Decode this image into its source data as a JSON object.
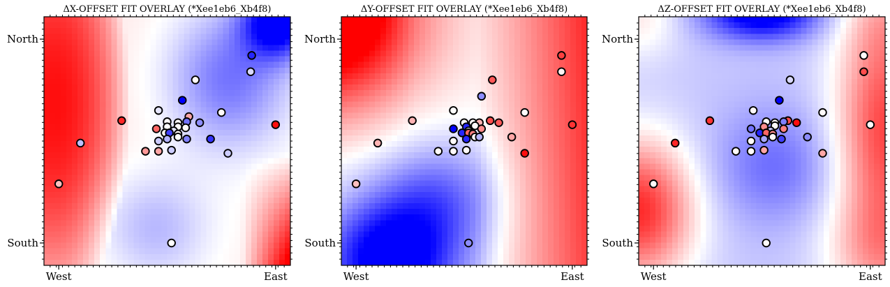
{
  "chart_data": [
    {
      "type": "scatter",
      "subtype": "heatmap-with-points",
      "title": "ΔX-OFFSET FIT OVERLAY (*Xee1eb6_Xb4f8)",
      "xlabel": "",
      "ylabel": "",
      "x_tick_labels": [
        "West",
        "East"
      ],
      "y_tick_labels": [
        "North",
        "South"
      ],
      "colormap": "bwr",
      "clim": [
        -1,
        1
      ],
      "field": "dx",
      "points": [
        {
          "x": 0.89,
          "y": 0.92,
          "v": -0.85
        },
        {
          "x": 0.885,
          "y": 0.84,
          "v": -0.15
        },
        {
          "x": 0.63,
          "y": 0.8,
          "v": 0.02
        },
        {
          "x": 0.57,
          "y": 0.7,
          "v": -1.0
        },
        {
          "x": 0.46,
          "y": 0.65,
          "v": -0.1
        },
        {
          "x": 0.6,
          "y": 0.62,
          "v": 0.35
        },
        {
          "x": 0.75,
          "y": 0.64,
          "v": 0.02
        },
        {
          "x": 0.29,
          "y": 0.6,
          "v": 0.85
        },
        {
          "x": 0.5,
          "y": 0.595,
          "v": 0.02
        },
        {
          "x": 0.55,
          "y": 0.59,
          "v": 0.02
        },
        {
          "x": 0.59,
          "y": 0.595,
          "v": -0.55
        },
        {
          "x": 0.65,
          "y": 0.59,
          "v": -0.45
        },
        {
          "x": 0.5,
          "y": 0.57,
          "v": 0.0
        },
        {
          "x": 0.55,
          "y": 0.57,
          "v": 0.02
        },
        {
          "x": 0.585,
          "y": 0.565,
          "v": 0.02
        },
        {
          "x": 0.45,
          "y": 0.56,
          "v": 0.6
        },
        {
          "x": 0.53,
          "y": 0.55,
          "v": -0.1
        },
        {
          "x": 0.49,
          "y": 0.54,
          "v": 0.02
        },
        {
          "x": 0.51,
          "y": 0.54,
          "v": -0.75
        },
        {
          "x": 0.55,
          "y": 0.535,
          "v": 0.02
        },
        {
          "x": 0.55,
          "y": 0.52,
          "v": 0.0
        },
        {
          "x": 0.5,
          "y": 0.51,
          "v": -0.3
        },
        {
          "x": 0.59,
          "y": 0.51,
          "v": -0.5
        },
        {
          "x": 0.7,
          "y": 0.51,
          "v": -0.8
        },
        {
          "x": 0.46,
          "y": 0.5,
          "v": -0.2
        },
        {
          "x": 1.0,
          "y": 0.58,
          "v": 0.95
        },
        {
          "x": 0.1,
          "y": 0.49,
          "v": -0.25
        },
        {
          "x": 0.4,
          "y": 0.45,
          "v": 0.4
        },
        {
          "x": 0.46,
          "y": 0.45,
          "v": 0.35
        },
        {
          "x": 0.52,
          "y": 0.455,
          "v": -0.2
        },
        {
          "x": 0.78,
          "y": 0.44,
          "v": -0.2
        },
        {
          "x": 0.0,
          "y": 0.29,
          "v": 0.25
        },
        {
          "x": 0.52,
          "y": 0.0,
          "v": 0.0
        }
      ]
    },
    {
      "type": "scatter",
      "subtype": "heatmap-with-points",
      "title": "ΔY-OFFSET FIT OVERLAY (*Xee1eb6_Xb4f8)",
      "xlabel": "",
      "ylabel": "",
      "x_tick_labels": [
        "West",
        "East"
      ],
      "y_tick_labels": [
        "North",
        "South"
      ],
      "colormap": "bwr",
      "clim": [
        -1,
        1
      ],
      "field": "dy",
      "points": [
        {
          "x": 0.95,
          "y": 0.92,
          "v": 0.75
        },
        {
          "x": 0.95,
          "y": 0.84,
          "v": 0.05
        },
        {
          "x": 0.63,
          "y": 0.8,
          "v": 0.65
        },
        {
          "x": 0.58,
          "y": 0.72,
          "v": -0.45
        },
        {
          "x": 0.45,
          "y": 0.65,
          "v": 0.0
        },
        {
          "x": 0.62,
          "y": 0.6,
          "v": 0.7
        },
        {
          "x": 0.78,
          "y": 0.64,
          "v": 0.02
        },
        {
          "x": 0.26,
          "y": 0.6,
          "v": 0.3
        },
        {
          "x": 0.5,
          "y": 0.59,
          "v": 0.02
        },
        {
          "x": 0.54,
          "y": 0.59,
          "v": 0.02
        },
        {
          "x": 0.57,
          "y": 0.59,
          "v": 0.3
        },
        {
          "x": 0.66,
          "y": 0.59,
          "v": 0.65
        },
        {
          "x": 0.45,
          "y": 0.56,
          "v": -1.0
        },
        {
          "x": 0.51,
          "y": 0.57,
          "v": -0.85
        },
        {
          "x": 0.55,
          "y": 0.575,
          "v": 0.02
        },
        {
          "x": 0.58,
          "y": 0.56,
          "v": 0.45
        },
        {
          "x": 0.52,
          "y": 0.55,
          "v": 0.02
        },
        {
          "x": 0.49,
          "y": 0.54,
          "v": -0.85
        },
        {
          "x": 0.52,
          "y": 0.54,
          "v": 0.6
        },
        {
          "x": 0.54,
          "y": 0.535,
          "v": 0.5
        },
        {
          "x": 0.55,
          "y": 0.52,
          "v": 0.02
        },
        {
          "x": 0.51,
          "y": 0.51,
          "v": -0.85
        },
        {
          "x": 0.57,
          "y": 0.52,
          "v": -0.3
        },
        {
          "x": 0.72,
          "y": 0.52,
          "v": 0.35
        },
        {
          "x": 0.45,
          "y": 0.5,
          "v": 0.02
        },
        {
          "x": 1.0,
          "y": 0.58,
          "v": 0.8
        },
        {
          "x": 0.1,
          "y": 0.49,
          "v": 0.3
        },
        {
          "x": 0.38,
          "y": 0.45,
          "v": 0.02
        },
        {
          "x": 0.45,
          "y": 0.45,
          "v": 0.02
        },
        {
          "x": 0.51,
          "y": 0.455,
          "v": 0.02
        },
        {
          "x": 0.78,
          "y": 0.44,
          "v": 0.95
        },
        {
          "x": 0.0,
          "y": 0.29,
          "v": 0.25
        },
        {
          "x": 0.52,
          "y": 0.0,
          "v": -0.45
        }
      ]
    },
    {
      "type": "scatter",
      "subtype": "heatmap-with-points",
      "title": "ΔZ-OFFSET FIT OVERLAY (*Xee1eb6_Xb4f8)",
      "xlabel": "",
      "ylabel": "",
      "x_tick_labels": [
        "West",
        "East"
      ],
      "y_tick_labels": [
        "North",
        "South"
      ],
      "colormap": "bwr",
      "clim": [
        -1,
        1
      ],
      "field": "dz",
      "points": [
        {
          "x": 0.97,
          "y": 0.92,
          "v": 0.02
        },
        {
          "x": 0.97,
          "y": 0.84,
          "v": 0.7
        },
        {
          "x": 0.63,
          "y": 0.8,
          "v": -0.15
        },
        {
          "x": 0.58,
          "y": 0.7,
          "v": -1.0
        },
        {
          "x": 0.46,
          "y": 0.65,
          "v": 0.02
        },
        {
          "x": 0.62,
          "y": 0.6,
          "v": 0.7
        },
        {
          "x": 0.78,
          "y": 0.64,
          "v": 0.02
        },
        {
          "x": 0.26,
          "y": 0.6,
          "v": 0.8
        },
        {
          "x": 0.52,
          "y": 0.595,
          "v": 0.02
        },
        {
          "x": 0.56,
          "y": 0.59,
          "v": 0.02
        },
        {
          "x": 0.6,
          "y": 0.595,
          "v": -0.5
        },
        {
          "x": 0.66,
          "y": 0.59,
          "v": 0.95
        },
        {
          "x": 0.45,
          "y": 0.56,
          "v": -0.55
        },
        {
          "x": 0.51,
          "y": 0.57,
          "v": 0.45
        },
        {
          "x": 0.56,
          "y": 0.575,
          "v": 0.02
        },
        {
          "x": 0.6,
          "y": 0.56,
          "v": 0.5
        },
        {
          "x": 0.54,
          "y": 0.55,
          "v": -0.2
        },
        {
          "x": 0.49,
          "y": 0.54,
          "v": -0.85
        },
        {
          "x": 0.52,
          "y": 0.54,
          "v": 0.6
        },
        {
          "x": 0.55,
          "y": 0.535,
          "v": 0.45
        },
        {
          "x": 0.55,
          "y": 0.52,
          "v": 0.02
        },
        {
          "x": 0.51,
          "y": 0.51,
          "v": -0.35
        },
        {
          "x": 0.59,
          "y": 0.51,
          "v": -0.75
        },
        {
          "x": 0.71,
          "y": 0.52,
          "v": -0.45
        },
        {
          "x": 0.45,
          "y": 0.5,
          "v": 0.02
        },
        {
          "x": 1.0,
          "y": 0.58,
          "v": 0.02
        },
        {
          "x": 0.1,
          "y": 0.49,
          "v": 0.85
        },
        {
          "x": 0.38,
          "y": 0.45,
          "v": 0.02
        },
        {
          "x": 0.45,
          "y": 0.45,
          "v": 0.02
        },
        {
          "x": 0.51,
          "y": 0.455,
          "v": 0.35
        },
        {
          "x": 0.78,
          "y": 0.44,
          "v": 0.35
        },
        {
          "x": 0.0,
          "y": 0.29,
          "v": 0.02
        },
        {
          "x": 0.52,
          "y": 0.0,
          "v": 0.02
        }
      ]
    }
  ]
}
